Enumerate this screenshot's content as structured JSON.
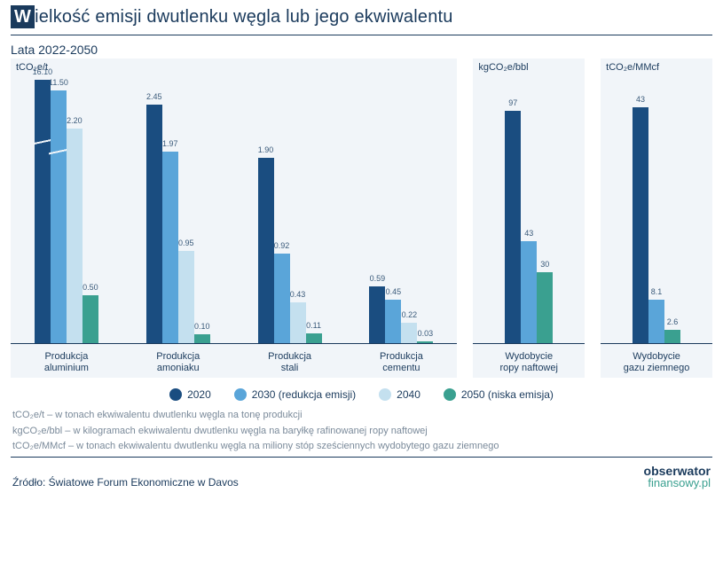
{
  "title_initial": "W",
  "title_rest": "ielkość emisji dwutlenku węgla lub jego ekwiwalentu",
  "subtitle": "Lata 2022-2050",
  "palette": {
    "s2020": "#1a4d80",
    "s2030": "#5aa5d9",
    "s2040": "#c4e0ef",
    "s2050": "#3aa090",
    "panel_bg": "#f1f5f9",
    "text": "#1a3a5c",
    "muted": "#7a8a9a"
  },
  "series": [
    {
      "key": "s2020",
      "label": "2020"
    },
    {
      "key": "s2030",
      "label": "2030 (redukcja emisji)"
    },
    {
      "key": "s2040",
      "label": "2040"
    },
    {
      "key": "s2050",
      "label": "2050 (niska emisja)"
    }
  ],
  "panels": [
    {
      "unit": "tCO₂e/t",
      "ymax": 2.7,
      "groups": [
        {
          "label": "Produkcja\naluminium",
          "bars": [
            {
              "k": "s2020",
              "v": 16.1,
              "disp": "16.10",
              "broken": true,
              "h": 1.0
            },
            {
              "k": "s2030",
              "v": 11.5,
              "disp": "11.50",
              "broken": true,
              "h": 0.96
            },
            {
              "k": "s2040",
              "v": 2.2,
              "disp": "2.20"
            },
            {
              "k": "s2050",
              "v": 0.5,
              "disp": "0.50"
            }
          ]
        },
        {
          "label": "Produkcja\namoniaku",
          "bars": [
            {
              "k": "s2020",
              "v": 2.45,
              "disp": "2.45"
            },
            {
              "k": "s2030",
              "v": 1.97,
              "disp": "1.97"
            },
            {
              "k": "s2040",
              "v": 0.95,
              "disp": "0.95"
            },
            {
              "k": "s2050",
              "v": 0.1,
              "disp": "0.10"
            }
          ]
        },
        {
          "label": "Produkcja\nstali",
          "bars": [
            {
              "k": "s2020",
              "v": 1.9,
              "disp": "1.90"
            },
            {
              "k": "s2030",
              "v": 0.92,
              "disp": "0.92"
            },
            {
              "k": "s2040",
              "v": 0.43,
              "disp": "0.43"
            },
            {
              "k": "s2050",
              "v": 0.11,
              "disp": "0.11"
            }
          ]
        },
        {
          "label": "Produkcja\ncementu",
          "bars": [
            {
              "k": "s2020",
              "v": 0.59,
              "disp": "0.59"
            },
            {
              "k": "s2030",
              "v": 0.45,
              "disp": "0.45"
            },
            {
              "k": "s2040",
              "v": 0.22,
              "disp": "0.22"
            },
            {
              "k": "s2050",
              "v": 0.03,
              "disp": "0.03"
            }
          ]
        }
      ]
    },
    {
      "unit": "kgCO₂e/bbl",
      "ymax": 110,
      "groups": [
        {
          "label": "Wydobycie\nropy naftowej",
          "bars": [
            {
              "k": "s2020",
              "v": 97,
              "disp": "97"
            },
            {
              "k": "s2030",
              "v": 43,
              "disp": "43"
            },
            {
              "k": "s2050",
              "v": 30,
              "disp": "30"
            }
          ]
        }
      ]
    },
    {
      "unit": "tCO₂e/MMcf",
      "ymax": 48,
      "groups": [
        {
          "label": "Wydobycie\ngazu ziemnego",
          "bars": [
            {
              "k": "s2020",
              "v": 43,
              "disp": "43"
            },
            {
              "k": "s2030",
              "v": 8.1,
              "disp": "8.1"
            },
            {
              "k": "s2050",
              "v": 2.6,
              "disp": "2.6"
            }
          ]
        }
      ]
    }
  ],
  "footnotes": [
    "tCO₂e/t – w tonach ekwiwalentu dwutlenku węgla na tonę produkcji",
    "kgCO₂e/bbl – w kilogramach ekwiwalentu dwutlenku węgla na baryłkę rafinowanej ropy naftowej",
    "tCO₂e/MMcf – w tonach ekwiwalentu dwutlenku węgla na miliony stóp sześciennych wydobytego gazu ziemnego"
  ],
  "source": "Źródło: Światowe Forum Ekonomiczne w Davos",
  "brand": {
    "line1": "obserwator",
    "line2": "finansowy.pl"
  }
}
